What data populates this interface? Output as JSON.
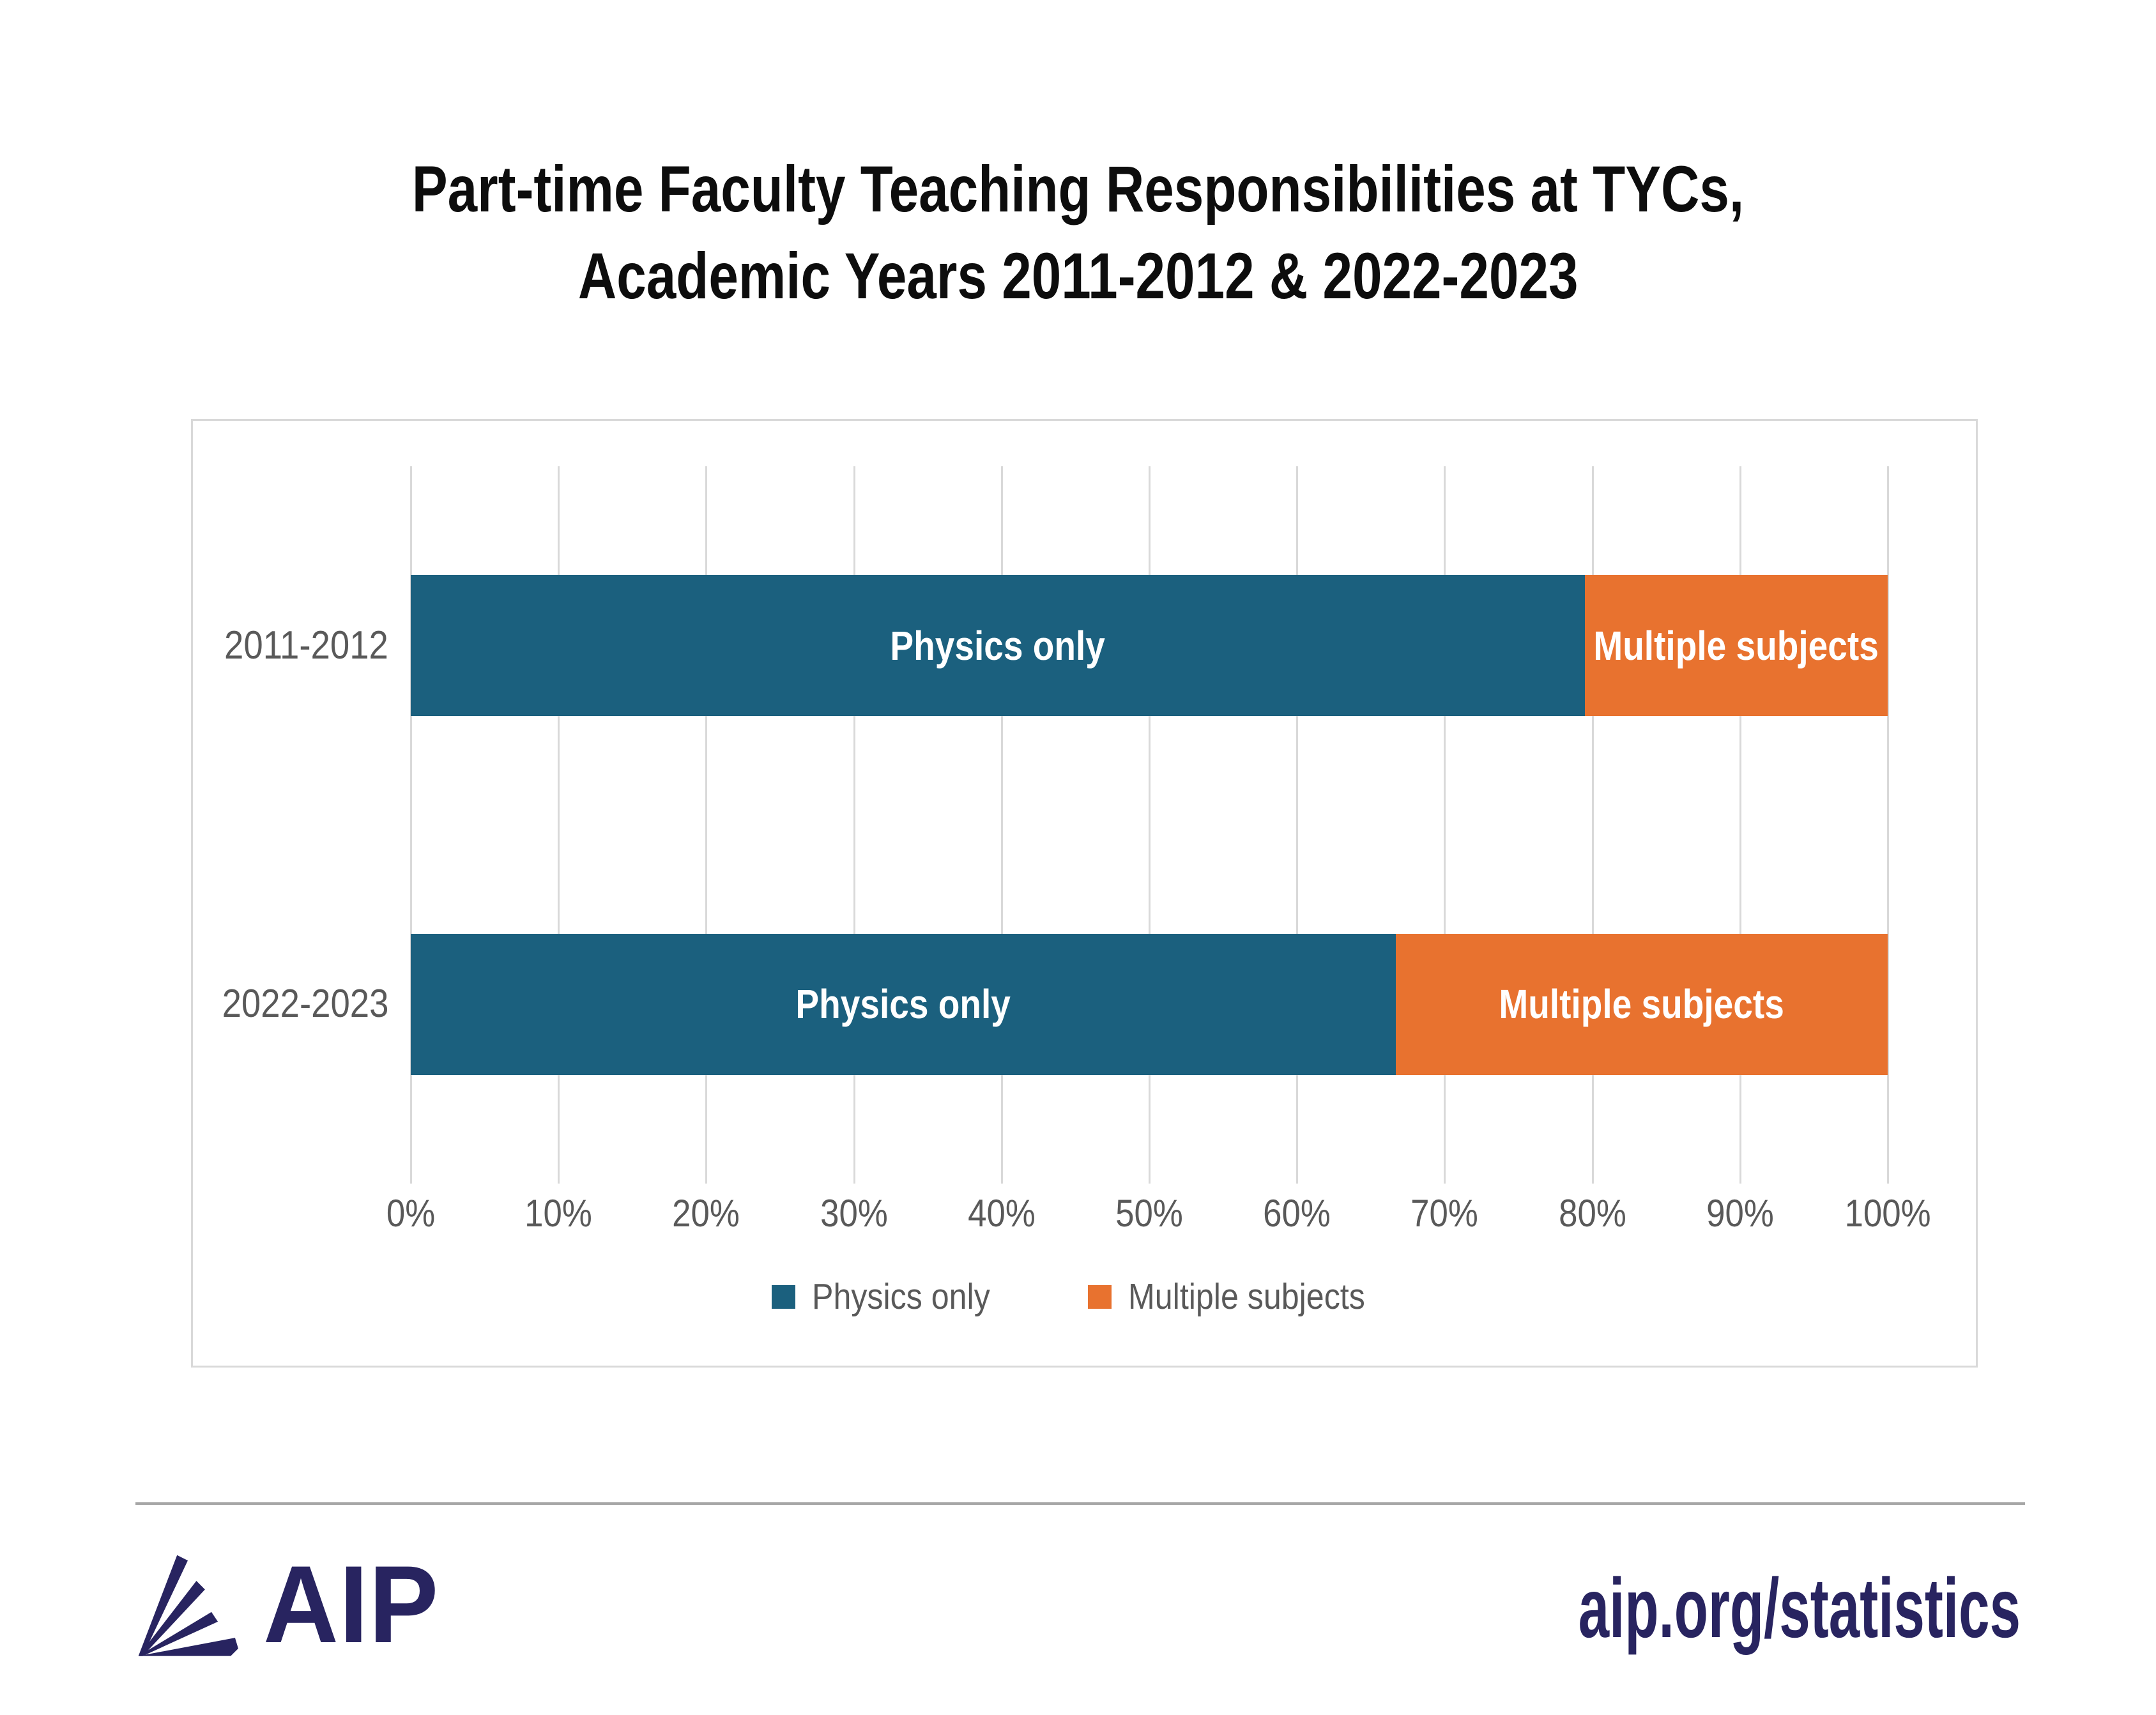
{
  "title": {
    "line1": "Part-time Faculty Teaching Responsibilities at TYCs,",
    "line2": "Academic Years 2011-2012 & 2022-2023"
  },
  "chart_data": {
    "type": "bar",
    "orientation": "horizontal",
    "stacked": true,
    "title": "Part-time Faculty Teaching Responsibilities at TYCs, Academic Years 2011-2012 & 2022-2023",
    "categories": [
      "2011-2012",
      "2022-2023"
    ],
    "series": [
      {
        "name": "Physics only",
        "color": "#1B607E",
        "values": [
          79.5,
          66.7
        ]
      },
      {
        "name": "Multiple subjects",
        "color": "#E8722F",
        "values": [
          20.5,
          33.3
        ]
      }
    ],
    "x_ticks": [
      "0%",
      "10%",
      "20%",
      "30%",
      "40%",
      "50%",
      "60%",
      "70%",
      "80%",
      "90%",
      "100%"
    ],
    "xlim": [
      0,
      100
    ],
    "xlabel": "",
    "ylabel": "",
    "grid": true,
    "gridline_color": "#D9D9D9",
    "bar_labels_inside": true,
    "bar_label_color": "#FFFFFF",
    "legend_position": "bottom"
  },
  "footer": {
    "brand": "AIP",
    "url": "aip.org/statistics"
  },
  "colors": {
    "teal": "#1B607E",
    "orange": "#E8722F",
    "axis_text": "#595959",
    "frame_border": "#D9D9D9",
    "separator": "#A6A6A6",
    "navy": "#282460",
    "title_text": "#0D0D0D"
  }
}
